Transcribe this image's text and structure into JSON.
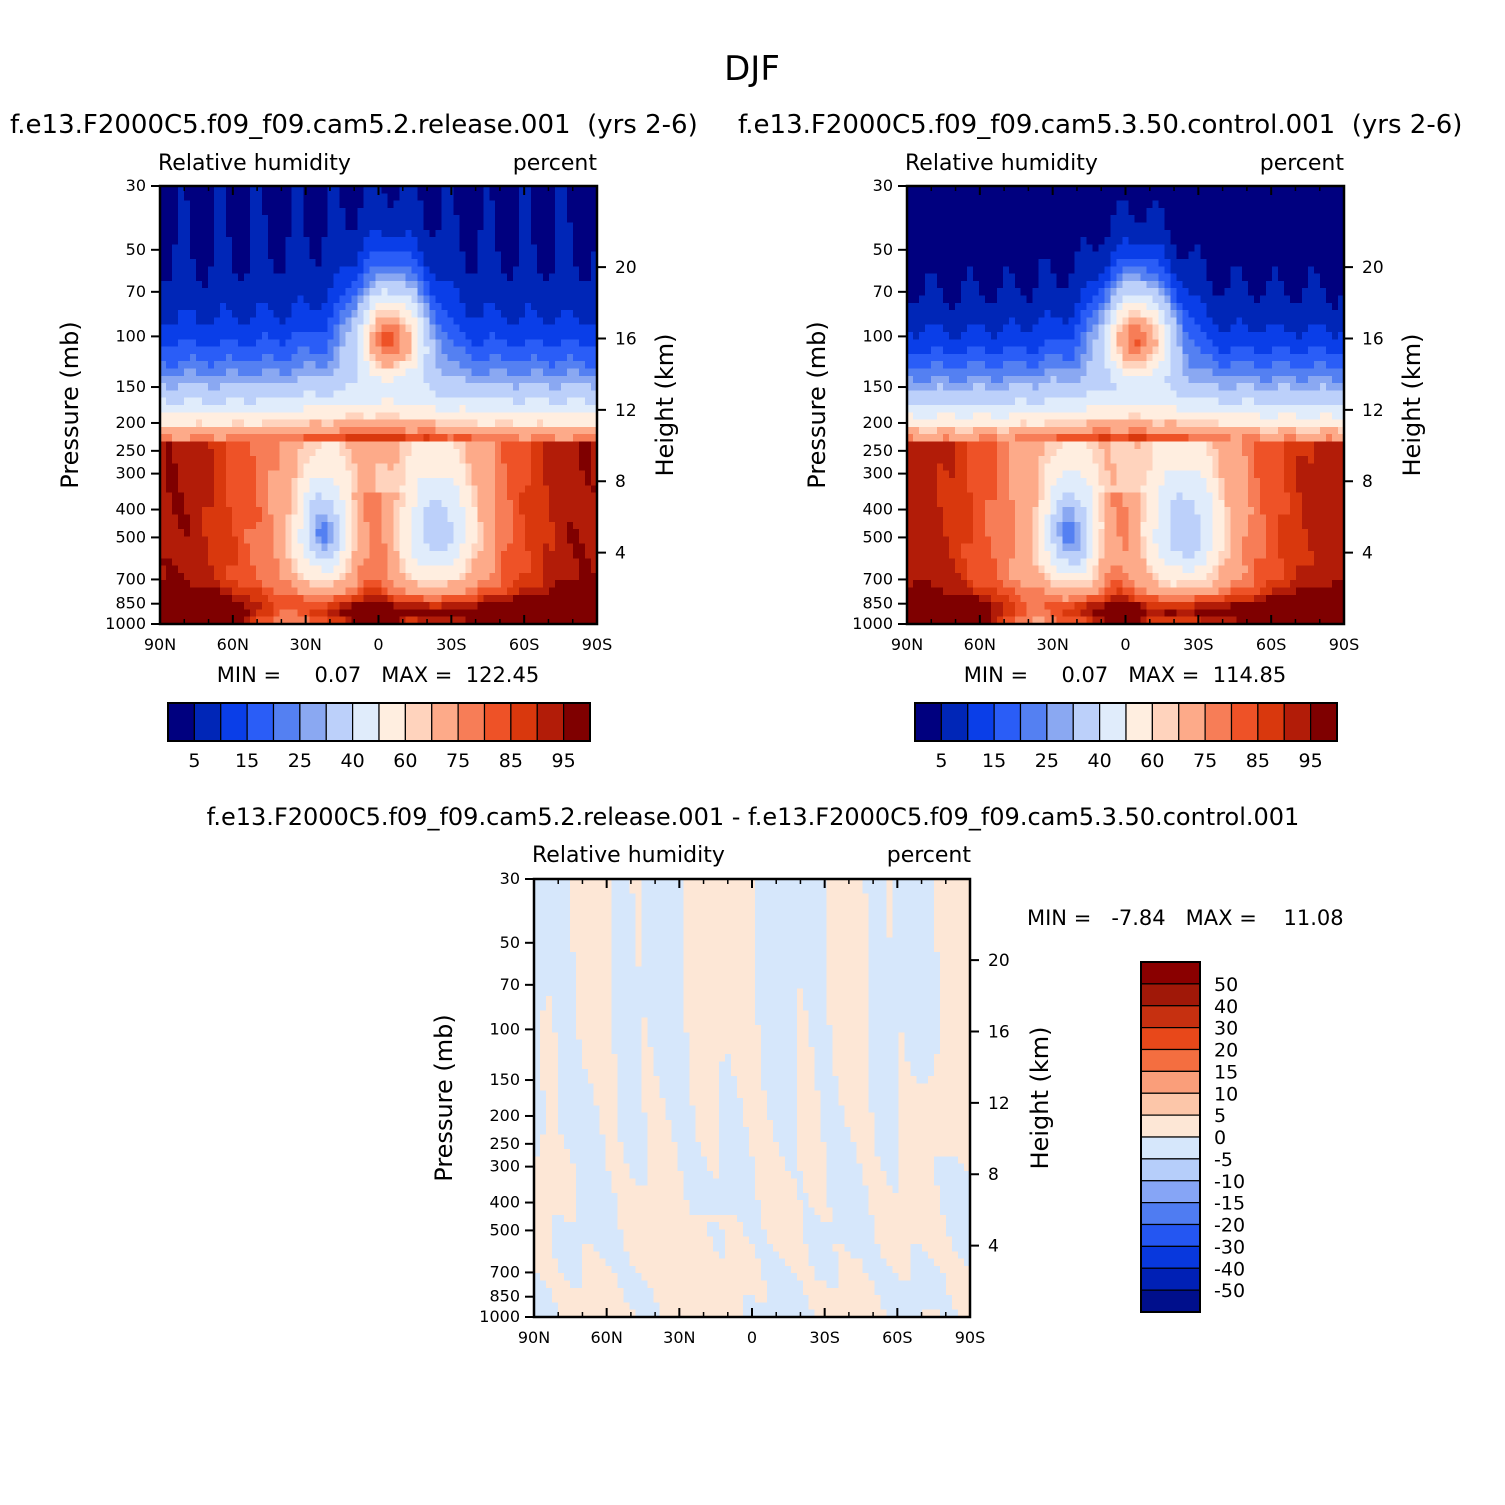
{
  "figure_title": "DJF",
  "colors": {
    "abs_levels": [
      "#00007f",
      "#0026b7",
      "#0a3ee8",
      "#2a5df7",
      "#5480f2",
      "#8aa8f2",
      "#bcd0fa",
      "#e0ecfb",
      "#ffeee0",
      "#ffd3bd",
      "#fdaa89",
      "#f77d57",
      "#ee5227",
      "#d9380d",
      "#b21c08",
      "#7f0000"
    ],
    "diff_levels": [
      "#000f8c",
      "#0020b5",
      "#0838dd",
      "#2456f2",
      "#4f7cf2",
      "#86a5f6",
      "#b6cefa",
      "#d6e7fb",
      "#fde7d6",
      "#fcc6a9",
      "#fa9e7a",
      "#f46e40",
      "#e8481a",
      "#c63010",
      "#a01808",
      "#8a0000"
    ]
  },
  "chart_data": [
    {
      "id": "panel-1",
      "type": "heatmap",
      "title": "f.e13.F2000C5.f09_f09.cam5.2.release.001  (yrs 2-6)",
      "left_label": "Relative humidity",
      "right_label": "percent",
      "xlabel": "",
      "ylabel": "Pressure (mb)",
      "ylabel_right": "Height (km)",
      "x_ticks": [
        "90N",
        "60N",
        "30N",
        "0",
        "30S",
        "60S",
        "90S"
      ],
      "y_ticks": [
        "30",
        "50",
        "70",
        "100",
        "150",
        "200",
        "250",
        "300",
        "400",
        "500",
        "700",
        "850",
        "1000"
      ],
      "y_ticks_right": [
        "20",
        "16",
        "12",
        "8",
        "4"
      ],
      "stats_text": "MIN =     0.07   MAX =  122.45",
      "colorbar_labels": [
        "5",
        "15",
        "25",
        "40",
        "60",
        "75",
        "85",
        "95"
      ],
      "palette": "abs",
      "xlim": [
        90,
        -90
      ],
      "ylim": [
        1000,
        30
      ]
    },
    {
      "id": "panel-2",
      "type": "heatmap",
      "title": "f.e13.F2000C5.f09_f09.cam5.3.50.control.001  (yrs 2-6)",
      "left_label": "Relative humidity",
      "right_label": "percent",
      "xlabel": "",
      "ylabel": "Pressure (mb)",
      "ylabel_right": "Height (km)",
      "x_ticks": [
        "90N",
        "60N",
        "30N",
        "0",
        "30S",
        "60S",
        "90S"
      ],
      "y_ticks": [
        "30",
        "50",
        "70",
        "100",
        "150",
        "200",
        "250",
        "300",
        "400",
        "500",
        "700",
        "850",
        "1000"
      ],
      "y_ticks_right": [
        "20",
        "16",
        "12",
        "8",
        "4"
      ],
      "stats_text": "MIN =     0.07   MAX =  114.85",
      "colorbar_labels": [
        "5",
        "15",
        "25",
        "40",
        "60",
        "75",
        "85",
        "95"
      ],
      "palette": "abs",
      "xlim": [
        90,
        -90
      ],
      "ylim": [
        1000,
        30
      ]
    },
    {
      "id": "panel-diff",
      "type": "heatmap",
      "title": "f.e13.F2000C5.f09_f09.cam5.2.release.001 - f.e13.F2000C5.f09_f09.cam5.3.50.control.001",
      "left_label": "Relative humidity",
      "right_label": "percent",
      "xlabel": "",
      "ylabel": "Pressure (mb)",
      "ylabel_right": "Height (km)",
      "x_ticks": [
        "90N",
        "60N",
        "30N",
        "0",
        "30S",
        "60S",
        "90S"
      ],
      "y_ticks": [
        "30",
        "50",
        "70",
        "100",
        "150",
        "200",
        "250",
        "300",
        "400",
        "500",
        "700",
        "850",
        "1000"
      ],
      "y_ticks_right": [
        "20",
        "16",
        "12",
        "8",
        "4"
      ],
      "stats_text": "MIN =   -7.84   MAX =    11.08",
      "colorbar_labels": [
        "50",
        "40",
        "30",
        "20",
        "15",
        "10",
        "5",
        "0",
        "-5",
        "-10",
        "-15",
        "-20",
        "-30",
        "-40",
        "-50"
      ],
      "palette": "diff",
      "xlim": [
        90,
        -90
      ],
      "ylim": [
        1000,
        30
      ]
    }
  ]
}
